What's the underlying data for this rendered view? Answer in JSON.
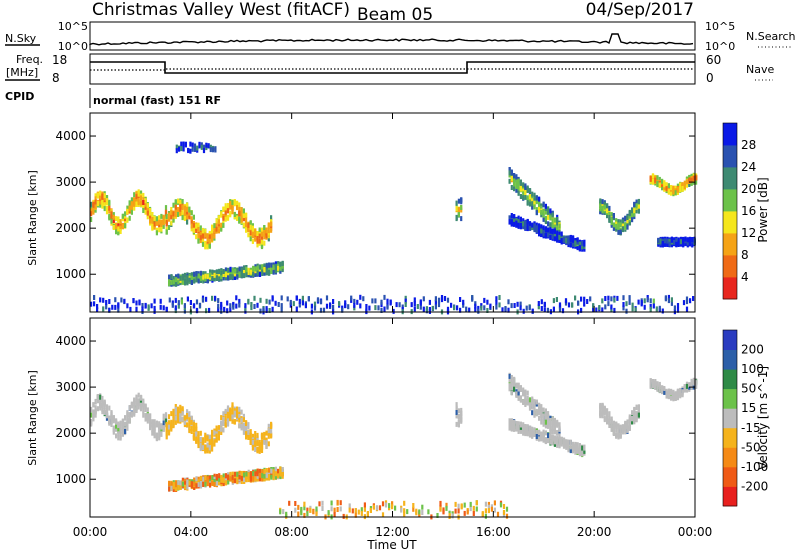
{
  "header": {
    "station": "Christmas Valley West (fitACF)",
    "beam": "Beam 05",
    "date": "04/Sep/2017"
  },
  "summary": {
    "nsky_label": "N.Sky",
    "nsky_scale": [
      "10^5",
      "10^0"
    ],
    "nsearch_label": "N.Search",
    "nsearch_scale": [
      "10^5",
      "10^0"
    ],
    "freq_label_1": "Freq.",
    "freq_label_2": "[MHz]",
    "freq_ticks": [
      "18",
      "8"
    ],
    "nave_label": "Nave",
    "nave_ticks": [
      "60",
      "0"
    ],
    "cpid_label": "CPID",
    "cpid_text": "normal (fast) 151 RF"
  },
  "chart_data": [
    {
      "type": "heatmap",
      "name": "power",
      "ylabel": "Slant Range [km]",
      "xlabel": "Time UT",
      "xlim_hours": [
        0,
        24
      ],
      "ylim": [
        180,
        4500
      ],
      "y_ticks": [
        1000,
        2000,
        3000,
        4000
      ],
      "colorbar_label": "Power [dB]",
      "colorbar_ticks": [
        "28",
        "24",
        "20",
        "16",
        "12",
        "8",
        "4"
      ],
      "colorbar_colors": [
        "#0a1ae6",
        "#2a52b0",
        "#3e8a72",
        "#6cc24a",
        "#f5e61c",
        "#f5a316",
        "#ef6a16",
        "#e8261e"
      ],
      "regions": [
        {
          "t": [
            0.0,
            3.0
          ],
          "r": [
            1800,
            2900
          ],
          "level": "high",
          "band": "wavy"
        },
        {
          "t": [
            3.0,
            7.2
          ],
          "r": [
            1500,
            2700
          ],
          "level": "high",
          "band": "wavy"
        },
        {
          "t": [
            3.1,
            7.6
          ],
          "r": [
            700,
            1300
          ],
          "level": "mid",
          "band": "rising"
        },
        {
          "t": [
            3.4,
            5.0
          ],
          "r": [
            3500,
            4000
          ],
          "level": "low",
          "band": "sparse"
        },
        {
          "t": [
            14.5,
            14.7
          ],
          "r": [
            1700,
            3100
          ],
          "level": "mid",
          "band": "stripe"
        },
        {
          "t": [
            16.6,
            18.6
          ],
          "r": [
            2000,
            3100
          ],
          "level": "mid",
          "band": "slant"
        },
        {
          "t": [
            16.6,
            19.6
          ],
          "r": [
            1600,
            2200
          ],
          "level": "low",
          "band": "slant"
        },
        {
          "t": [
            20.2,
            21.8
          ],
          "r": [
            1800,
            2700
          ],
          "level": "mid",
          "band": "arc"
        },
        {
          "t": [
            22.2,
            24.0
          ],
          "r": [
            2700,
            3200
          ],
          "level": "high",
          "band": "arc"
        },
        {
          "t": [
            22.5,
            24.0
          ],
          "r": [
            1500,
            1900
          ],
          "level": "low",
          "band": "flat"
        },
        {
          "t": [
            0.0,
            24.0
          ],
          "r": [
            180,
            500
          ],
          "level": "low",
          "band": "ground"
        }
      ]
    },
    {
      "type": "heatmap",
      "name": "velocity",
      "ylabel": "Slant Range [km]",
      "xlabel": "Time UT",
      "xlim_hours": [
        0,
        24
      ],
      "ylim": [
        180,
        4500
      ],
      "y_ticks": [
        1000,
        2000,
        3000,
        4000
      ],
      "x_tick_labels": [
        "00:00",
        "04:00",
        "08:00",
        "12:00",
        "16:00",
        "20:00",
        "00:00"
      ],
      "colorbar_label": "Velocity [m s^-1]",
      "colorbar_ticks": [
        "200",
        "100",
        "50",
        "15",
        "-15",
        "-50",
        "-100",
        "-200"
      ],
      "colorbar_colors": [
        "#2a3cc0",
        "#2c5fa8",
        "#2e8a46",
        "#6cc24a",
        "#bcbcbc",
        "#f5b31c",
        "#f58a16",
        "#ef5a16",
        "#e8201e"
      ],
      "regions": [
        {
          "t": [
            0.0,
            3.0
          ],
          "r": [
            1800,
            2900
          ],
          "v": "ground",
          "band": "wavy"
        },
        {
          "t": [
            3.0,
            7.2
          ],
          "r": [
            1500,
            2700
          ],
          "v": "neg-small",
          "band": "wavy"
        },
        {
          "t": [
            3.1,
            7.6
          ],
          "r": [
            700,
            1300
          ],
          "v": "mixed",
          "band": "rising"
        },
        {
          "t": [
            14.5,
            14.7
          ],
          "r": [
            1700,
            3100
          ],
          "v": "ground",
          "band": "stripe"
        },
        {
          "t": [
            16.6,
            18.6
          ],
          "r": [
            2000,
            3100
          ],
          "v": "ground",
          "band": "slant"
        },
        {
          "t": [
            16.6,
            19.6
          ],
          "r": [
            1600,
            2200
          ],
          "v": "ground",
          "band": "slant"
        },
        {
          "t": [
            20.2,
            21.8
          ],
          "r": [
            1800,
            2700
          ],
          "v": "ground",
          "band": "arc"
        },
        {
          "t": [
            22.2,
            24.0
          ],
          "r": [
            2700,
            3200
          ],
          "v": "ground",
          "band": "arc"
        },
        {
          "t": [
            7.5,
            16.5
          ],
          "r": [
            180,
            500
          ],
          "v": "mixed",
          "band": "ground"
        }
      ]
    }
  ]
}
